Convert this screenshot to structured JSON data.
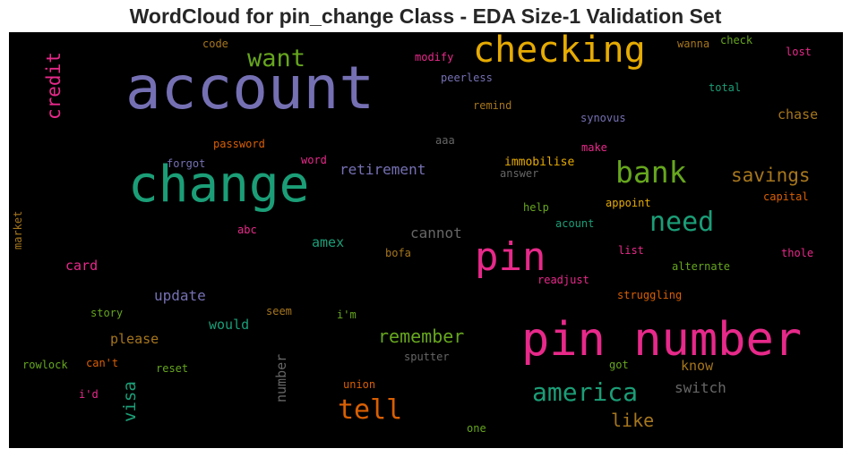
{
  "chart_data": {
    "type": "wordcloud",
    "title": "WordCloud for pin_change Class - EDA Size-1 Validation Set",
    "background": "#000000",
    "colormap": "Dark2",
    "words": [
      {
        "text": "account",
        "color": "#7570b3"
      },
      {
        "text": "change",
        "color": "#1b9e77"
      },
      {
        "text": "pin number",
        "color": "#e7298a"
      },
      {
        "text": "checking",
        "color": "#e6ab02"
      },
      {
        "text": "pin",
        "color": "#e7298a"
      },
      {
        "text": "bank",
        "color": "#66a61e"
      },
      {
        "text": "need",
        "color": "#1b9e77"
      },
      {
        "text": "tell",
        "color": "#d95f02"
      },
      {
        "text": "america",
        "color": "#1b9e77"
      },
      {
        "text": "want",
        "color": "#66a61e"
      },
      {
        "text": "savings",
        "color": "#a6761d"
      },
      {
        "text": "credit",
        "color": "#e7298a"
      },
      {
        "text": "remember",
        "color": "#66a61e"
      },
      {
        "text": "visa",
        "color": "#1b9e77"
      },
      {
        "text": "like",
        "color": "#a6761d"
      },
      {
        "text": "retirement",
        "color": "#7570b3"
      },
      {
        "text": "update",
        "color": "#7570b3"
      },
      {
        "text": "switch",
        "color": "#666666"
      },
      {
        "text": "chase",
        "color": "#a6761d"
      },
      {
        "text": "cannot",
        "color": "#666666"
      },
      {
        "text": "card",
        "color": "#e7298a"
      },
      {
        "text": "please",
        "color": "#a6761d"
      },
      {
        "text": "would",
        "color": "#1b9e77"
      },
      {
        "text": "amex",
        "color": "#1b9e77"
      },
      {
        "text": "know",
        "color": "#a6761d"
      },
      {
        "text": "number",
        "color": "#666666"
      },
      {
        "text": "immobilise",
        "color": "#e6ab02"
      },
      {
        "text": "modify",
        "color": "#e7298a"
      },
      {
        "text": "peerless",
        "color": "#7570b3"
      },
      {
        "text": "code",
        "color": "#a6761d"
      },
      {
        "text": "wanna",
        "color": "#a6761d"
      },
      {
        "text": "check",
        "color": "#66a61e"
      },
      {
        "text": "lost",
        "color": "#e7298a"
      },
      {
        "text": "total",
        "color": "#1b9e77"
      },
      {
        "text": "remind",
        "color": "#a6761d"
      },
      {
        "text": "synovus",
        "color": "#7570b3"
      },
      {
        "text": "password",
        "color": "#d95f02"
      },
      {
        "text": "aaa",
        "color": "#666666"
      },
      {
        "text": "make",
        "color": "#e7298a"
      },
      {
        "text": "forgot",
        "color": "#7570b3"
      },
      {
        "text": "word",
        "color": "#e7298a"
      },
      {
        "text": "answer",
        "color": "#666666"
      },
      {
        "text": "capital",
        "color": "#d95f02"
      },
      {
        "text": "appoint",
        "color": "#e6ab02"
      },
      {
        "text": "help",
        "color": "#66a61e"
      },
      {
        "text": "acount",
        "color": "#1b9e77"
      },
      {
        "text": "market",
        "color": "#a6761d"
      },
      {
        "text": "abc",
        "color": "#e7298a"
      },
      {
        "text": "bofa",
        "color": "#a6761d"
      },
      {
        "text": "list",
        "color": "#e7298a"
      },
      {
        "text": "thole",
        "color": "#e7298a"
      },
      {
        "text": "alternate",
        "color": "#66a61e"
      },
      {
        "text": "readjust",
        "color": "#e7298a"
      },
      {
        "text": "struggling",
        "color": "#d95f02"
      },
      {
        "text": "story",
        "color": "#66a61e"
      },
      {
        "text": "seem",
        "color": "#a6761d"
      },
      {
        "text": "i'm",
        "color": "#66a61e"
      },
      {
        "text": "rowlock",
        "color": "#66a61e"
      },
      {
        "text": "can't",
        "color": "#d95f02"
      },
      {
        "text": "reset",
        "color": "#66a61e"
      },
      {
        "text": "sputter",
        "color": "#666666"
      },
      {
        "text": "got",
        "color": "#66a61e"
      },
      {
        "text": "i'd",
        "color": "#e7298a"
      },
      {
        "text": "union",
        "color": "#d95f02"
      },
      {
        "text": "one",
        "color": "#66a61e"
      }
    ]
  }
}
